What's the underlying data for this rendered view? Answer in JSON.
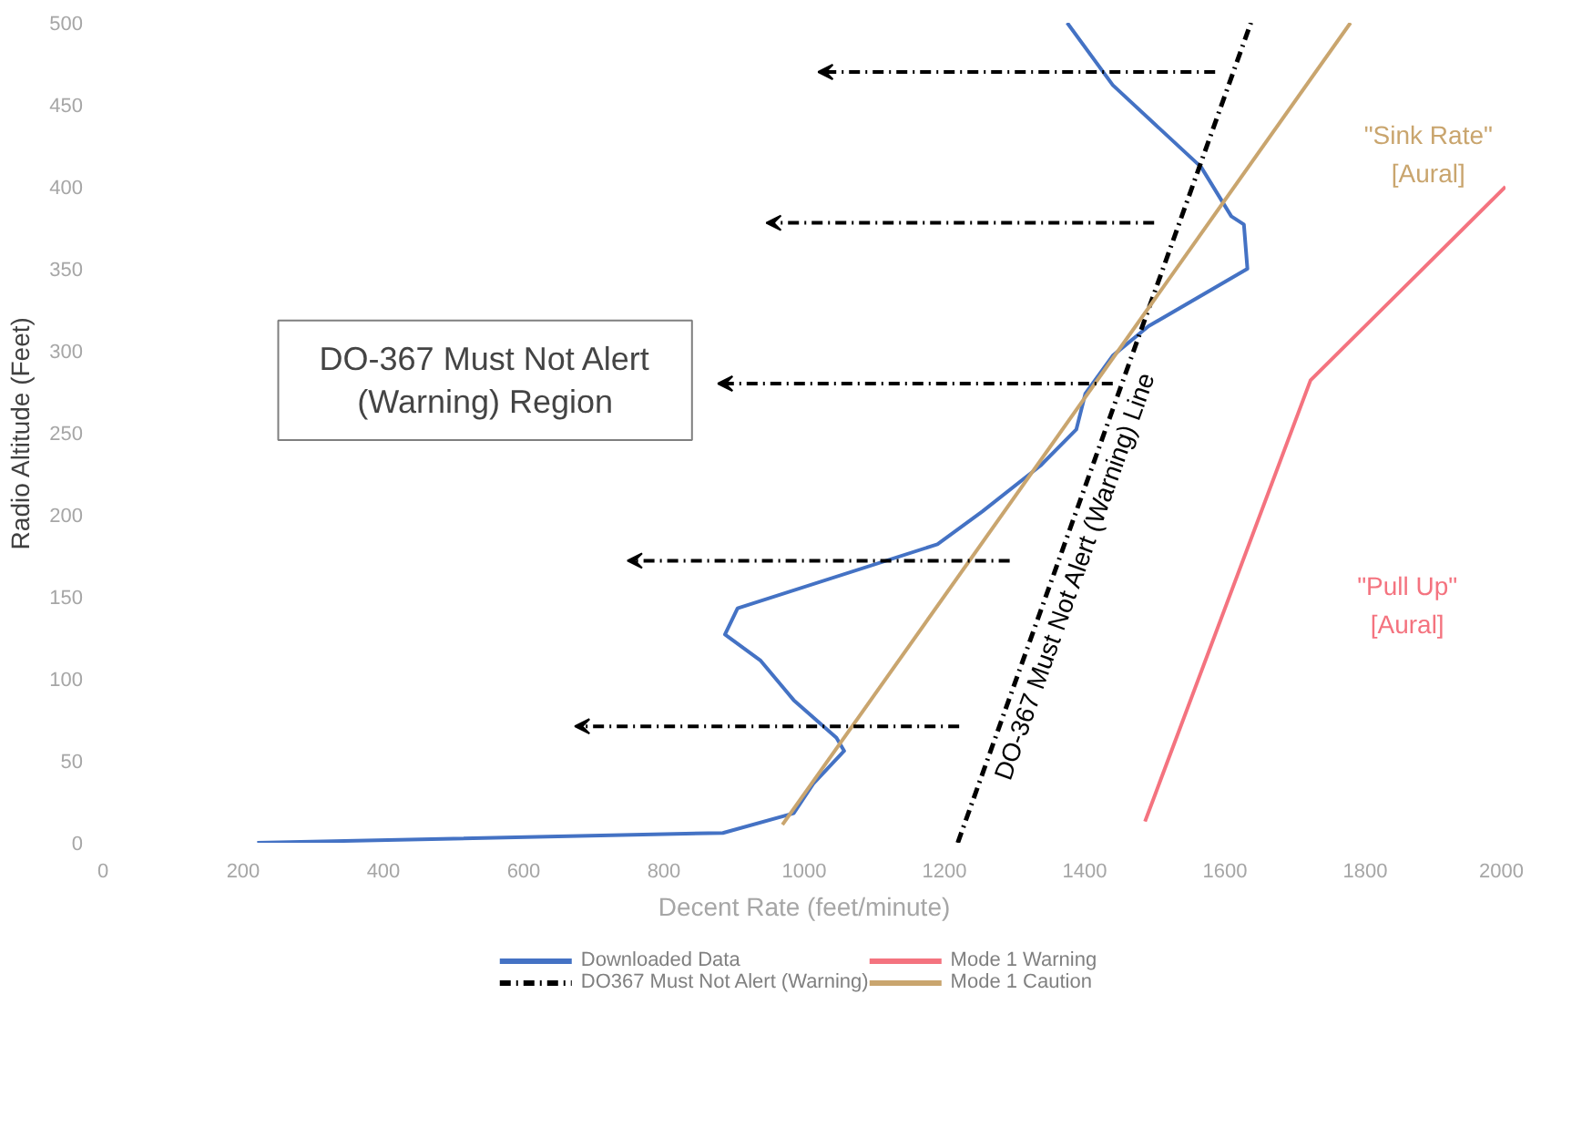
{
  "chart_data": {
    "type": "line",
    "xlabel": "Decent Rate (feet/minute)",
    "ylabel": "Radio Altitude (Feet)",
    "xlim": [
      0,
      2000
    ],
    "ylim": [
      0,
      500
    ],
    "xticks": [
      0,
      200,
      400,
      600,
      800,
      1000,
      1200,
      1400,
      1600,
      1800,
      2000
    ],
    "yticks": [
      0,
      50,
      100,
      150,
      200,
      250,
      300,
      350,
      400,
      450,
      500
    ],
    "grid": false,
    "legend": "bottom",
    "marker": "none",
    "series": [
      {
        "name": "Downloaded Data",
        "color": "#4472c4",
        "line_style": "solid",
        "x": [
          220,
          884,
          985,
          1013,
          1057,
          1046,
          985,
          938,
          887,
          905,
          1190,
          1254,
          1337,
          1388,
          1401,
          1440,
          1491,
          1632,
          1627,
          1609,
          1566,
          1440,
          1375
        ],
        "values": [
          0,
          6,
          18,
          36,
          56,
          64,
          87,
          111,
          127,
          143,
          182,
          202,
          230,
          252,
          274,
          297,
          315,
          350,
          377,
          382,
          412,
          462,
          500
        ]
      },
      {
        "name": "DO367 Must Not Alert (Warning)",
        "color": "#000000",
        "line_style": "dashed",
        "x": [
          1219,
          1637
        ],
        "values": [
          0,
          500
        ]
      },
      {
        "name": "Mode 1 Warning",
        "color": "#f4737f",
        "line_style": "solid",
        "x": [
          1486,
          1722,
          2000
        ],
        "values": [
          13,
          282,
          400
        ]
      },
      {
        "name": "Mode 1 Caution",
        "color": "#c9a56e",
        "line_style": "solid",
        "x": [
          969,
          1779
        ],
        "values": [
          11,
          500
        ]
      }
    ],
    "annotations": [
      "DO-367 Must Not Alert\n(Warning) Region",
      "DO-367 Must Not Alert (Warning) Line",
      "\"Sink Rate\"\n[Aural]",
      "\"Pull Up\"\n[Aural]"
    ]
  }
}
